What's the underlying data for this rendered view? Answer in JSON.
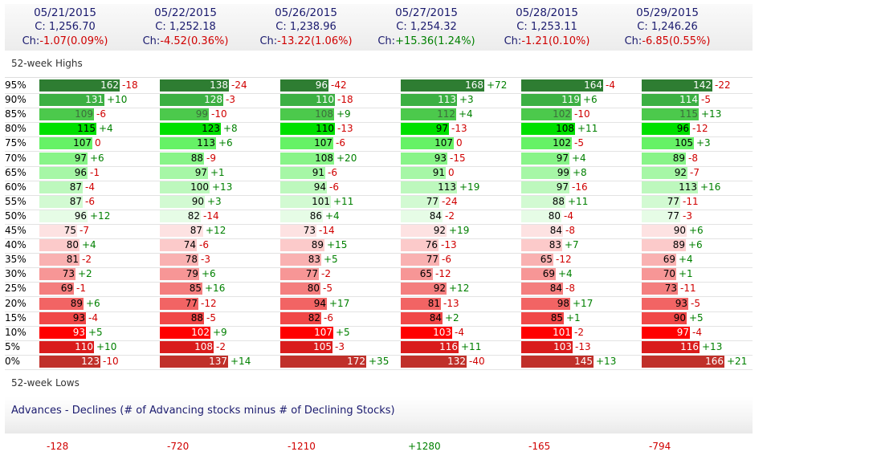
{
  "header": {
    "columns": [
      {
        "date": "05/21/2015",
        "close": "C: 1,256.70",
        "ch_label": "Ch:",
        "ch_value": "-1.07(0.09%)",
        "sign": "neg"
      },
      {
        "date": "05/22/2015",
        "close": "C: 1,252.18",
        "ch_label": "Ch:",
        "ch_value": "-4.52(0.36%)",
        "sign": "neg"
      },
      {
        "date": "05/26/2015",
        "close": "C: 1,238.96",
        "ch_label": "Ch:",
        "ch_value": "-13.22(1.06%)",
        "sign": "neg"
      },
      {
        "date": "05/27/2015",
        "close": "C: 1,254.32",
        "ch_label": "Ch:",
        "ch_value": "+15.36(1.24%)",
        "sign": "pos"
      },
      {
        "date": "05/28/2015",
        "close": "C: 1,253.11",
        "ch_label": "Ch:",
        "ch_value": "-1.21(0.10%)",
        "sign": "neg"
      },
      {
        "date": "05/29/2015",
        "close": "C: 1,246.26",
        "ch_label": "Ch:",
        "ch_value": "-6.85(0.55%)",
        "sign": "neg"
      }
    ]
  },
  "sections": {
    "highs_label": "52-week Highs",
    "lows_label": "52-week Lows",
    "advances_title": "Advances - Declines (# of Advancing stocks minus # of Declining Stocks)"
  },
  "rows": [
    {
      "label": "95%",
      "color": "#2e7d32",
      "cells": [
        [
          "162",
          "-18"
        ],
        [
          "138",
          "-24"
        ],
        [
          "96",
          "-42"
        ],
        [
          "168",
          "+72"
        ],
        [
          "164",
          "-4"
        ],
        [
          "142",
          "-22"
        ]
      ]
    },
    {
      "label": "90%",
      "color": "#3cb043",
      "cells": [
        [
          "131",
          "+10"
        ],
        [
          "128",
          "-3"
        ],
        [
          "110",
          "-18"
        ],
        [
          "113",
          "+3"
        ],
        [
          "119",
          "+6"
        ],
        [
          "114",
          "-5"
        ]
      ]
    },
    {
      "label": "85%",
      "color": "#4cc94c",
      "cells": [
        [
          "109",
          "-6"
        ],
        [
          "99",
          "-10"
        ],
        [
          "108",
          "+9"
        ],
        [
          "112",
          "+4"
        ],
        [
          "102",
          "-10"
        ],
        [
          "115",
          "+13"
        ]
      ]
    },
    {
      "label": "80%",
      "color": "#00e000",
      "cells": [
        [
          "115",
          "+4"
        ],
        [
          "123",
          "+8"
        ],
        [
          "110",
          "-13"
        ],
        [
          "97",
          "-13"
        ],
        [
          "108",
          "+11"
        ],
        [
          "96",
          "-12"
        ]
      ]
    },
    {
      "label": "75%",
      "color": "#66f266",
      "cells": [
        [
          "107",
          "0"
        ],
        [
          "113",
          "+6"
        ],
        [
          "107",
          "-6"
        ],
        [
          "107",
          "0"
        ],
        [
          "102",
          "-5"
        ],
        [
          "105",
          "+3"
        ]
      ]
    },
    {
      "label": "70%",
      "color": "#88f488",
      "cells": [
        [
          "97",
          "+6"
        ],
        [
          "88",
          "-9"
        ],
        [
          "108",
          "+20"
        ],
        [
          "93",
          "-15"
        ],
        [
          "97",
          "+4"
        ],
        [
          "89",
          "-8"
        ]
      ]
    },
    {
      "label": "65%",
      "color": "#a6f7a6",
      "cells": [
        [
          "96",
          "-1"
        ],
        [
          "97",
          "+1"
        ],
        [
          "91",
          "-6"
        ],
        [
          "91",
          "0"
        ],
        [
          "99",
          "+8"
        ],
        [
          "92",
          "-7"
        ]
      ]
    },
    {
      "label": "60%",
      "color": "#bdf8bd",
      "cells": [
        [
          "87",
          "-4"
        ],
        [
          "100",
          "+13"
        ],
        [
          "94",
          "-6"
        ],
        [
          "113",
          "+19"
        ],
        [
          "97",
          "-16"
        ],
        [
          "113",
          "+16"
        ]
      ]
    },
    {
      "label": "55%",
      "color": "#d2fad2",
      "cells": [
        [
          "87",
          "-6"
        ],
        [
          "90",
          "+3"
        ],
        [
          "101",
          "+11"
        ],
        [
          "77",
          "-24"
        ],
        [
          "88",
          "+11"
        ],
        [
          "77",
          "-11"
        ]
      ]
    },
    {
      "label": "50%",
      "color": "#e6fce6",
      "cells": [
        [
          "96",
          "+12"
        ],
        [
          "82",
          "-14"
        ],
        [
          "86",
          "+4"
        ],
        [
          "84",
          "-2"
        ],
        [
          "80",
          "-4"
        ],
        [
          "77",
          "-3"
        ]
      ]
    },
    {
      "label": "45%",
      "color": "#fde2e2",
      "cells": [
        [
          "75",
          "-7"
        ],
        [
          "87",
          "+12"
        ],
        [
          "73",
          "-14"
        ],
        [
          "92",
          "+19"
        ],
        [
          "84",
          "-8"
        ],
        [
          "90",
          "+6"
        ]
      ]
    },
    {
      "label": "40%",
      "color": "#fccaca",
      "cells": [
        [
          "80",
          "+4"
        ],
        [
          "74",
          "-6"
        ],
        [
          "89",
          "+15"
        ],
        [
          "76",
          "-13"
        ],
        [
          "83",
          "+7"
        ],
        [
          "89",
          "+6"
        ]
      ]
    },
    {
      "label": "35%",
      "color": "#f9b1b1",
      "cells": [
        [
          "81",
          "-2"
        ],
        [
          "78",
          "-3"
        ],
        [
          "83",
          "+5"
        ],
        [
          "77",
          "-6"
        ],
        [
          "65",
          "-12"
        ],
        [
          "69",
          "+4"
        ]
      ]
    },
    {
      "label": "30%",
      "color": "#f79696",
      "cells": [
        [
          "73",
          "+2"
        ],
        [
          "79",
          "+6"
        ],
        [
          "77",
          "-2"
        ],
        [
          "65",
          "-12"
        ],
        [
          "69",
          "+4"
        ],
        [
          "70",
          "+1"
        ]
      ]
    },
    {
      "label": "25%",
      "color": "#f47e7e",
      "cells": [
        [
          "69",
          "-1"
        ],
        [
          "85",
          "+16"
        ],
        [
          "80",
          "-5"
        ],
        [
          "92",
          "+12"
        ],
        [
          "84",
          "-8"
        ],
        [
          "73",
          "-11"
        ]
      ]
    },
    {
      "label": "20%",
      "color": "#f26464",
      "cells": [
        [
          "89",
          "+6"
        ],
        [
          "77",
          "-12"
        ],
        [
          "94",
          "+17"
        ],
        [
          "81",
          "-13"
        ],
        [
          "98",
          "+17"
        ],
        [
          "93",
          "-5"
        ]
      ]
    },
    {
      "label": "15%",
      "color": "#f04848",
      "cells": [
        [
          "93",
          "-4"
        ],
        [
          "88",
          "-5"
        ],
        [
          "82",
          "-6"
        ],
        [
          "84",
          "+2"
        ],
        [
          "85",
          "+1"
        ],
        [
          "90",
          "+5"
        ]
      ]
    },
    {
      "label": "10%",
      "color": "#ff0000",
      "cells": [
        [
          "93",
          "+5"
        ],
        [
          "102",
          "+9"
        ],
        [
          "107",
          "+5"
        ],
        [
          "103",
          "-4"
        ],
        [
          "101",
          "-2"
        ],
        [
          "97",
          "-4"
        ]
      ]
    },
    {
      "label": "5%",
      "color": "#d91c1c",
      "cells": [
        [
          "110",
          "+10"
        ],
        [
          "108",
          "-2"
        ],
        [
          "105",
          "-3"
        ],
        [
          "116",
          "+11"
        ],
        [
          "103",
          "-13"
        ],
        [
          "116",
          "+13"
        ]
      ]
    },
    {
      "label": "0%",
      "color": "#c0302a",
      "cells": [
        [
          "123",
          "-10"
        ],
        [
          "137",
          "+14"
        ],
        [
          "172",
          "+35"
        ],
        [
          "132",
          "-40"
        ],
        [
          "145",
          "+13"
        ],
        [
          "166",
          "+21"
        ]
      ]
    }
  ],
  "advances_declines": [
    "-128",
    "-720",
    "-1210",
    "+1280",
    "-165",
    "-794"
  ],
  "colors": {
    "positive": "#008000",
    "negative": "#d00000",
    "header_text": "#1a1a6e"
  }
}
